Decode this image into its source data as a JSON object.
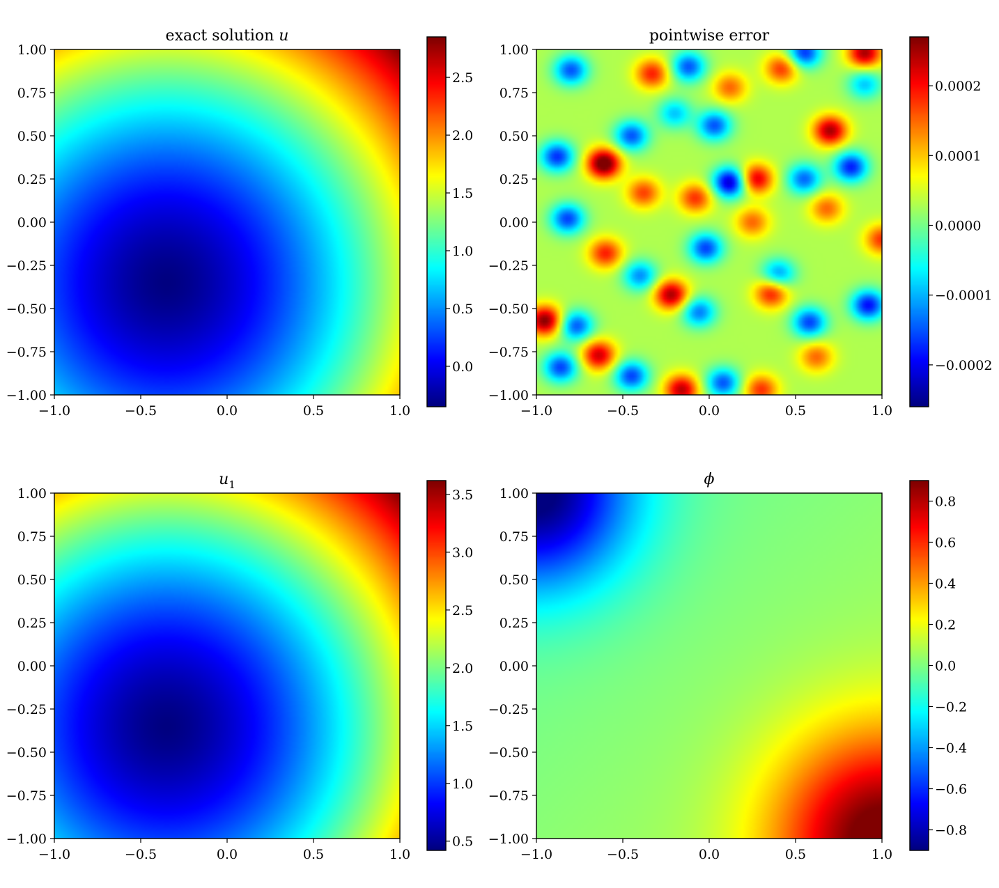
{
  "chart_data": [
    {
      "type": "heatmap",
      "title": "exact solution ",
      "title_symbol": "u",
      "title_symbol_sub": "",
      "xlim": [
        -1.0,
        1.0
      ],
      "ylim": [
        -1.0,
        1.0
      ],
      "xticks": [
        "−1.0",
        "−0.5",
        "0.0",
        "0.5",
        "1.0"
      ],
      "yticks": [
        "1.00",
        "0.75",
        "0.50",
        "0.25",
        "0.00",
        "−0.25",
        "−0.50",
        "−0.75",
        "−1.00"
      ],
      "colormap": "jet",
      "colorbar": {
        "range": [
          -0.35,
          2.85
        ],
        "ticks": [
          0.0,
          0.5,
          1.0,
          1.5,
          2.0,
          2.5
        ],
        "tick_labels": [
          "0.0",
          "0.5",
          "1.0",
          "1.5",
          "2.0",
          "2.5"
        ]
      },
      "field": {
        "description_kind": "radial bowl",
        "minimum_at": [
          -0.35,
          -0.35
        ],
        "minimum_value": -0.35,
        "maximum_at": [
          1.0,
          1.0
        ],
        "maximum_value": 2.85
      },
      "grid": false
    },
    {
      "type": "heatmap",
      "title": "pointwise error",
      "title_symbol": "",
      "title_symbol_sub": "",
      "xlim": [
        -1.0,
        1.0
      ],
      "ylim": [
        -1.0,
        1.0
      ],
      "xticks": [
        "−1.0",
        "−0.5",
        "0.0",
        "0.5",
        "1.0"
      ],
      "yticks": [
        "1.00",
        "0.75",
        "0.50",
        "0.25",
        "0.00",
        "−0.25",
        "−0.50",
        "−0.75",
        "−1.00"
      ],
      "colormap": "jet",
      "colorbar": {
        "range": [
          -0.00026,
          0.00027
        ],
        "ticks": [
          -0.0002,
          -0.0001,
          0.0,
          0.0001,
          0.0002
        ],
        "tick_labels": [
          "−0.0002",
          "−0.0001",
          "0.0000",
          "0.0001",
          "0.0002"
        ]
      },
      "field": {
        "description_kind": "blobs",
        "blobs": [
          [
            -0.61,
            0.34,
            0.00027
          ],
          [
            -0.95,
            -0.57,
            0.00024
          ],
          [
            -0.22,
            -0.42,
            0.00022
          ],
          [
            0.27,
            0.25,
            0.0002
          ],
          [
            0.7,
            0.53,
            0.00022
          ],
          [
            0.9,
            0.98,
            0.00022
          ],
          [
            -0.33,
            0.86,
            0.00016
          ],
          [
            0.42,
            0.89,
            0.00015
          ],
          [
            -0.38,
            0.17,
            0.00014
          ],
          [
            0.12,
            0.78,
            0.00012
          ],
          [
            -0.82,
            0.02,
            -0.00019
          ],
          [
            -0.16,
            -0.97,
            0.00021
          ],
          [
            -0.08,
            0.14,
            0.00015
          ],
          [
            0.36,
            -0.41,
            0.00017
          ],
          [
            0.3,
            -0.97,
            0.00015
          ],
          [
            -0.6,
            -0.18,
            0.00016
          ],
          [
            -0.4,
            -0.31,
            -0.00015
          ],
          [
            -0.64,
            -0.77,
            0.0002
          ],
          [
            0.12,
            0.23,
            -0.00026
          ],
          [
            -0.88,
            0.38,
            -0.0002
          ],
          [
            -0.45,
            0.5,
            -0.00018
          ],
          [
            0.03,
            0.56,
            -0.00018
          ],
          [
            0.82,
            0.32,
            -0.00021
          ],
          [
            0.55,
            0.25,
            -0.00017
          ],
          [
            0.92,
            -0.48,
            -0.00022
          ],
          [
            0.58,
            -0.58,
            -0.00019
          ],
          [
            0.4,
            -0.3,
            -0.00015
          ],
          [
            -0.02,
            -0.15,
            -0.00019
          ],
          [
            -0.86,
            -0.84,
            -0.00019
          ],
          [
            -0.77,
            -0.6,
            -0.00018
          ],
          [
            -0.45,
            -0.89,
            -0.00019
          ],
          [
            0.08,
            -0.93,
            -0.00018
          ],
          [
            -0.8,
            0.88,
            -0.00018
          ],
          [
            -0.12,
            0.9,
            -0.00018
          ],
          [
            0.55,
            0.98,
            -0.0002
          ],
          [
            -0.06,
            -0.52,
            -0.00016
          ],
          [
            0.9,
            0.8,
            -0.00012
          ],
          [
            0.62,
            -0.78,
            0.00012
          ],
          [
            1.0,
            -0.1,
            0.00015
          ],
          [
            0.25,
            0.0,
            0.00012
          ],
          [
            -0.2,
            0.63,
            -0.00012
          ],
          [
            0.68,
            0.08,
            0.00012
          ]
        ]
      },
      "grid": false
    },
    {
      "type": "heatmap",
      "title": "",
      "title_symbol": "u",
      "title_symbol_sub": "1",
      "xlim": [
        -1.0,
        1.0
      ],
      "ylim": [
        -1.0,
        1.0
      ],
      "xticks": [
        "−1.0",
        "−0.5",
        "0.0",
        "0.5",
        "1.0"
      ],
      "yticks": [
        "1.00",
        "0.75",
        "0.50",
        "0.25",
        "0.00",
        "−0.25",
        "−0.50",
        "−0.75",
        "−1.00"
      ],
      "colormap": "jet",
      "colorbar": {
        "range": [
          0.42,
          3.62
        ],
        "ticks": [
          0.5,
          1.0,
          1.5,
          2.0,
          2.5,
          3.0,
          3.5
        ],
        "tick_labels": [
          "0.5",
          "1.0",
          "1.5",
          "2.0",
          "2.5",
          "3.0",
          "3.5"
        ]
      },
      "field": {
        "description_kind": "radial bowl",
        "minimum_at": [
          -0.35,
          -0.35
        ],
        "minimum_value": 0.42,
        "maximum_at": [
          1.0,
          1.0
        ],
        "maximum_value": 3.62
      },
      "grid": false
    },
    {
      "type": "heatmap",
      "title": "",
      "title_symbol": "ϕ",
      "title_symbol_sub": "",
      "xlim": [
        -1.0,
        1.0
      ],
      "ylim": [
        -1.0,
        1.0
      ],
      "xticks": [
        "−1.0",
        "−0.5",
        "0.0",
        "0.5",
        "1.0"
      ],
      "yticks": [
        "1.00",
        "0.75",
        "0.50",
        "0.25",
        "0.00",
        "−0.25",
        "−0.50",
        "−0.75",
        "−1.00"
      ],
      "colormap": "jet",
      "colorbar": {
        "range": [
          -0.9,
          0.9
        ],
        "ticks": [
          -0.8,
          -0.6,
          -0.4,
          -0.2,
          0.0,
          0.2,
          0.4,
          0.6,
          0.8
        ],
        "tick_labels": [
          "−0.8",
          "−0.6",
          "−0.4",
          "−0.2",
          "0.0",
          "0.2",
          "0.4",
          "0.6",
          "0.8"
        ]
      },
      "field": {
        "description_kind": "corner extremes",
        "minimum_at": [
          -1.0,
          1.0
        ],
        "minimum_value": -0.88,
        "maximum_at": [
          1.0,
          -1.0
        ],
        "maximum_value": 0.88,
        "background_value": 0.0
      },
      "grid": false
    }
  ]
}
